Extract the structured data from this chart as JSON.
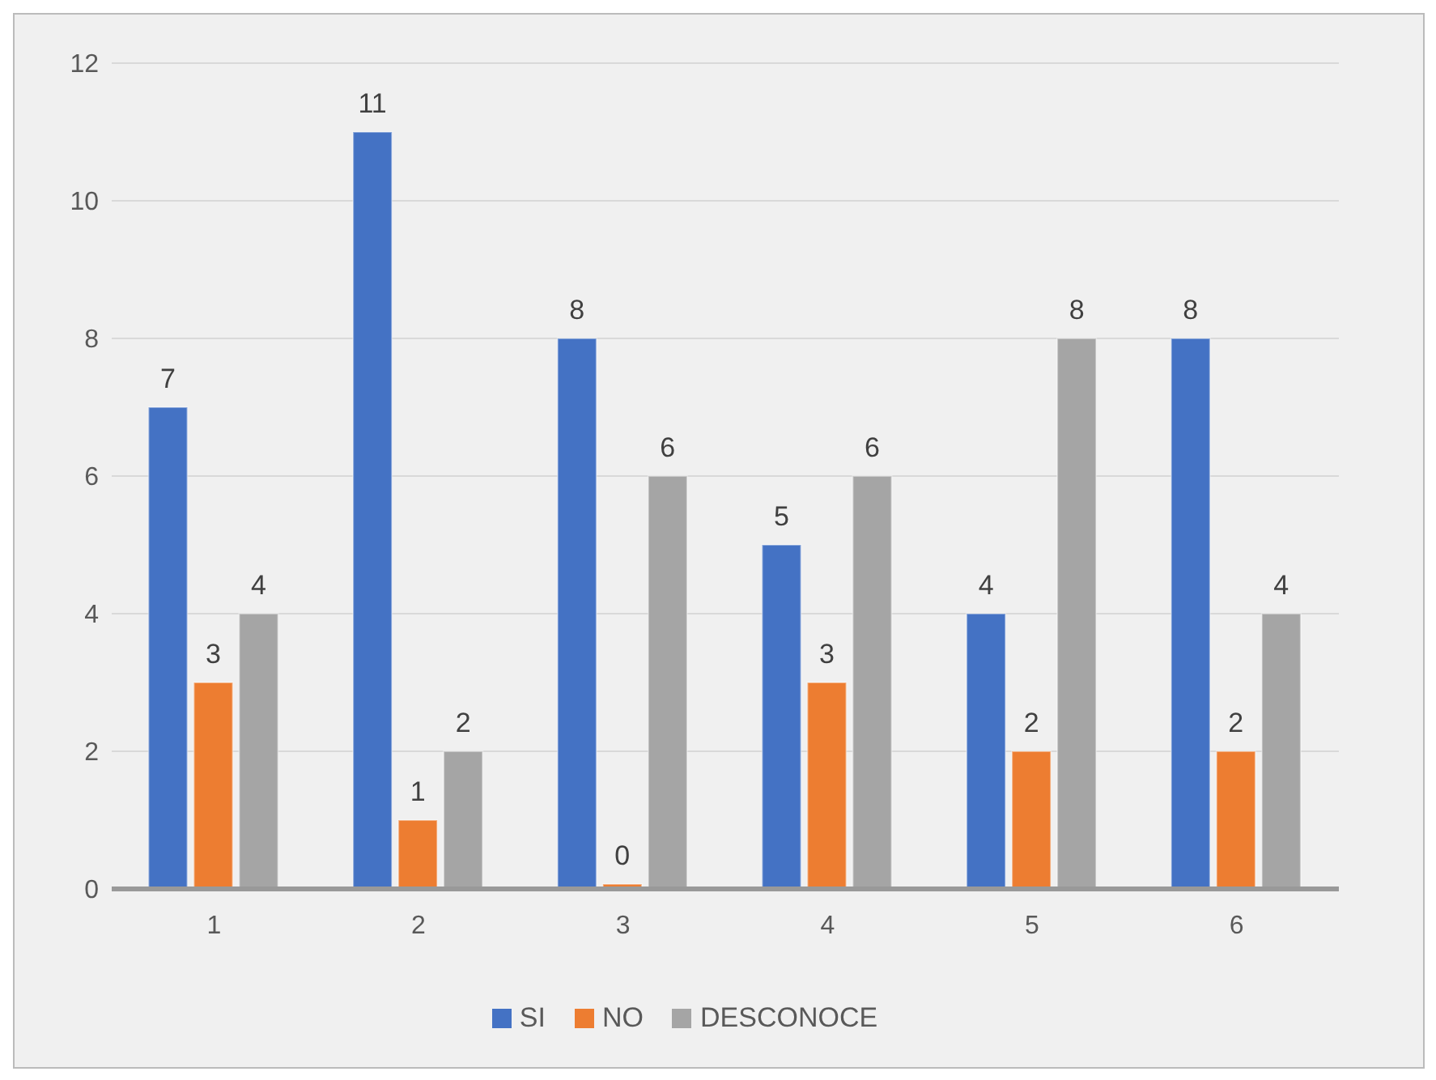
{
  "chart_data": {
    "type": "bar",
    "categories": [
      "1",
      "2",
      "3",
      "4",
      "5",
      "6"
    ],
    "series": [
      {
        "name": "SI",
        "color": "#4472c4",
        "values": [
          7,
          11,
          8,
          5,
          4,
          8
        ]
      },
      {
        "name": "NO",
        "color": "#ed7d31",
        "values": [
          3,
          1,
          0,
          3,
          2,
          2
        ]
      },
      {
        "name": "DESCONOCE",
        "color": "#a5a5a5",
        "values": [
          4,
          2,
          6,
          6,
          8,
          4
        ]
      }
    ],
    "ylim": [
      0,
      12
    ],
    "yticks": [
      0,
      2,
      4,
      6,
      8,
      10,
      12
    ],
    "grid": "y",
    "legend": "bottom",
    "data_labels": true
  }
}
